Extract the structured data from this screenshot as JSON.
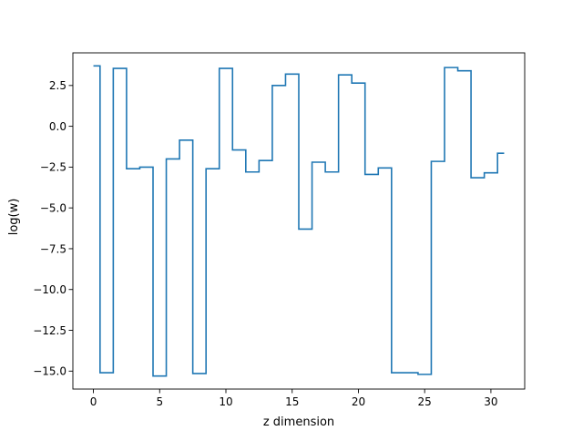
{
  "chart_data": {
    "type": "line",
    "step_style": "mid",
    "title": "",
    "xlabel": "z dimension",
    "ylabel": "log(w)",
    "xlim": [
      -1.55,
      32.55
    ],
    "ylim": [
      -16.1,
      4.5
    ],
    "xticks": [
      0,
      5,
      10,
      15,
      20,
      25,
      30
    ],
    "xtick_labels": [
      "0",
      "5",
      "10",
      "15",
      "20",
      "25",
      "30"
    ],
    "yticks": [
      2.5,
      0.0,
      -2.5,
      -5.0,
      -7.5,
      -10.0,
      -12.5,
      -15.0
    ],
    "ytick_labels": [
      "2.5",
      "0.0",
      "−2.5",
      "−5.0",
      "−7.5",
      "−10.0",
      "−12.5",
      "−15.0"
    ],
    "grid": false,
    "colors": {
      "line": "#1f77b4"
    },
    "series": [
      {
        "x": [
          0,
          1,
          2,
          3,
          4,
          5,
          6,
          7,
          8,
          9,
          10,
          11,
          12,
          13,
          14,
          15,
          16,
          17,
          18,
          19,
          20,
          21,
          22,
          23,
          24,
          25,
          26,
          27,
          28,
          29,
          30,
          31
        ],
        "values": [
          3.7,
          -15.1,
          3.55,
          -2.6,
          -2.5,
          -15.3,
          -2.0,
          -0.85,
          -15.15,
          -2.6,
          3.55,
          -1.45,
          -2.8,
          -2.1,
          2.5,
          3.2,
          -6.3,
          -2.2,
          -2.8,
          3.15,
          2.65,
          -2.95,
          -2.55,
          -15.1,
          -15.1,
          -15.2,
          -2.15,
          3.6,
          3.4,
          -3.15,
          -2.85,
          -1.65
        ]
      }
    ]
  }
}
